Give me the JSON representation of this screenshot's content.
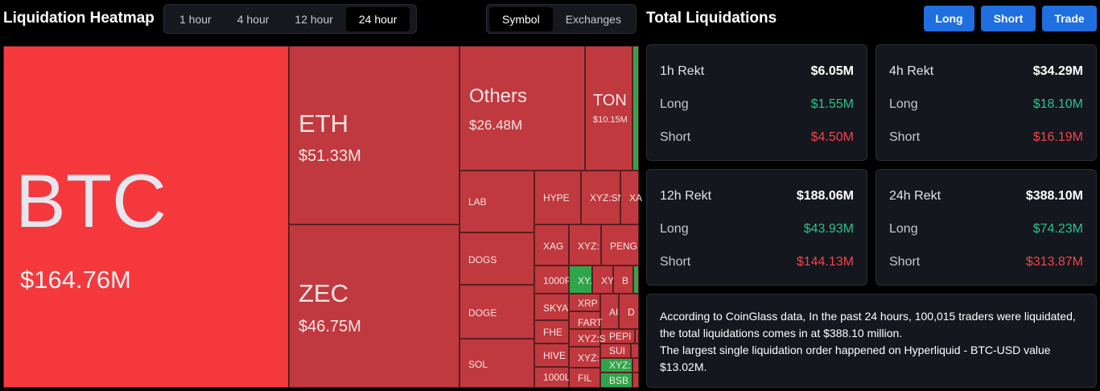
{
  "header": {
    "title": "Liquidation Heatmap",
    "time_options": [
      "1 hour",
      "4 hour",
      "12 hour",
      "24 hour"
    ],
    "time_selected": "24 hour",
    "view_options": [
      "Symbol",
      "Exchanges"
    ],
    "view_selected": "Symbol"
  },
  "right_header": {
    "title": "Total Liquidations",
    "buttons": [
      "Long",
      "Short",
      "Trade"
    ]
  },
  "treemap": {
    "cells": [
      {
        "sym": "BTC",
        "val": "$164.76M"
      },
      {
        "sym": "ETH",
        "val": "$51.33M"
      },
      {
        "sym": "ZEC",
        "val": "$46.75M"
      },
      {
        "sym": "Others",
        "val": "$26.48M"
      },
      {
        "sym": "TON",
        "val": "$10.15M"
      },
      {
        "sym": "LAB"
      },
      {
        "sym": "DOGS"
      },
      {
        "sym": "DOGE"
      },
      {
        "sym": "SOL"
      },
      {
        "sym": "HYPE"
      },
      {
        "sym": "XYZ:SN"
      },
      {
        "sym": "XA"
      },
      {
        "sym": "XAG"
      },
      {
        "sym": "XYZ:"
      },
      {
        "sym": "PENG"
      },
      {
        "sym": "1000P"
      },
      {
        "sym": "XY."
      },
      {
        "sym": "XY."
      },
      {
        "sym": "B"
      },
      {
        "sym": "SKYAI"
      },
      {
        "sym": "XRP"
      },
      {
        "sym": "AI"
      },
      {
        "sym": "D"
      },
      {
        "sym": "FHE"
      },
      {
        "sym": "FART"
      },
      {
        "sym": "PEPI"
      },
      {
        "sym": "XYZ:S"
      },
      {
        "sym": "HIVE"
      },
      {
        "sym": "SUI"
      },
      {
        "sym": "XYZ:"
      },
      {
        "sym": "XYZ:"
      },
      {
        "sym": "1000L"
      },
      {
        "sym": "FIL"
      },
      {
        "sym": "BSB"
      }
    ]
  },
  "stats": [
    {
      "title": "1h Rekt",
      "total": "$6.05M",
      "long_label": "Long",
      "long": "$1.55M",
      "short_label": "Short",
      "short": "$4.50M"
    },
    {
      "title": "4h Rekt",
      "total": "$34.29M",
      "long_label": "Long",
      "long": "$18.10M",
      "short_label": "Short",
      "short": "$16.19M"
    },
    {
      "title": "12h Rekt",
      "total": "$188.06M",
      "long_label": "Long",
      "long": "$43.93M",
      "short_label": "Short",
      "short": "$144.13M"
    },
    {
      "title": "24h Rekt",
      "total": "$388.10M",
      "long_label": "Long",
      "long": "$74.23M",
      "short_label": "Short",
      "short": "$313.87M"
    }
  ],
  "summary": {
    "line1": "According to CoinGlass data, In the past 24 hours, 100,015 traders were liquidated, the total liquidations comes in at $388.10 million.",
    "line2": "The largest single liquidation order happened on Hyperliquid - BTC-USD value $13.02M."
  },
  "colors": {
    "background": "#000000",
    "accent": "#1f6fe0",
    "cell_red": "#c0393f",
    "cell_bright": "#f5383c",
    "cell_green": "#2fa64b",
    "long_green": "#2ec08b",
    "short_red": "#f0454b"
  }
}
